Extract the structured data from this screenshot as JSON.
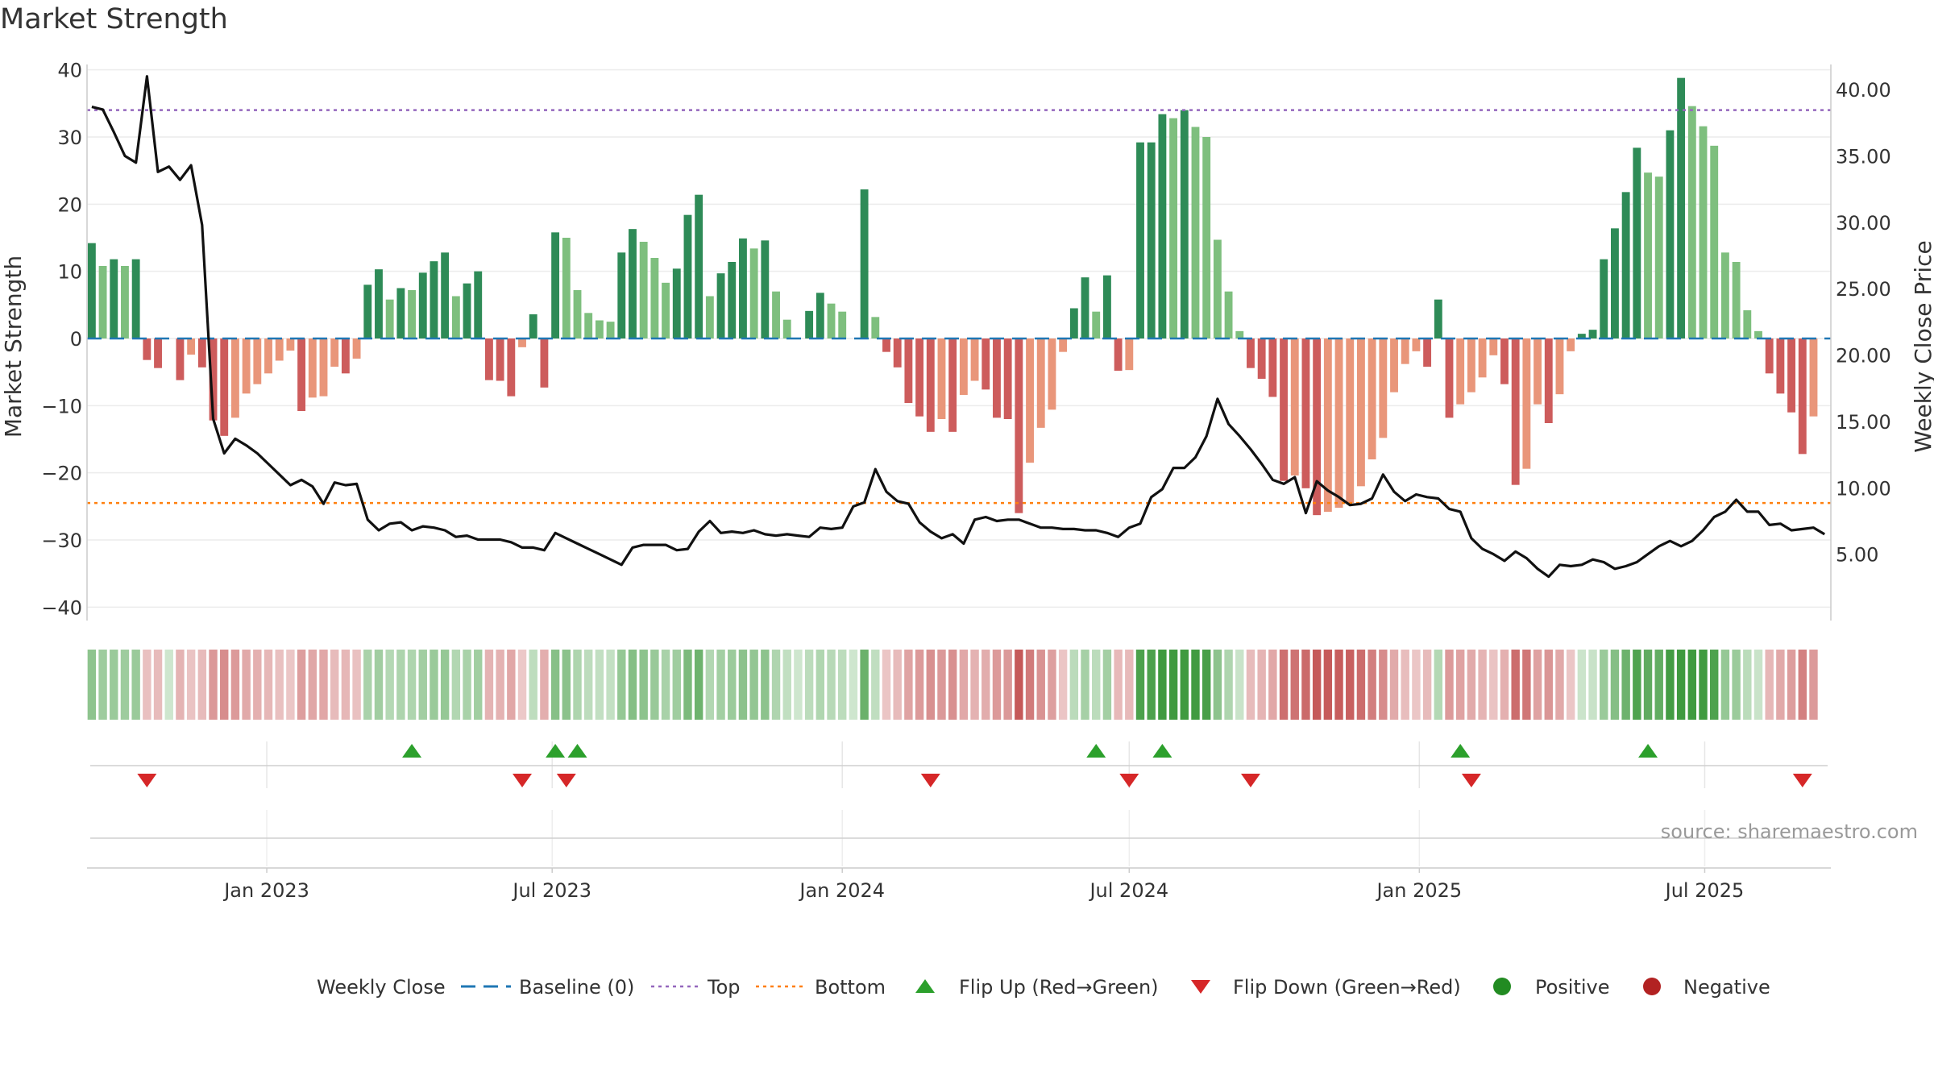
{
  "chart_data": {
    "type": "bar",
    "title": "Market Strength",
    "source": "source: sharemaestro.com",
    "y_left_label": "Market Strength",
    "y_right_label": "Weekly Close Price",
    "y_left_ticks": [
      "40",
      "30",
      "20",
      "10",
      "0",
      "−10",
      "−20",
      "−30",
      "−40"
    ],
    "y_left_tick_values": [
      40,
      30,
      20,
      10,
      0,
      -10,
      -20,
      -30,
      -40
    ],
    "y_right_ticks": [
      "40.00",
      "35.00",
      "30.00",
      "25.00",
      "20.00",
      "15.00",
      "10.00",
      "5.00"
    ],
    "y_right_tick_values": [
      40,
      35,
      30,
      25,
      20,
      15,
      10,
      5
    ],
    "ylim_left": [
      -42,
      42
    ],
    "ylim_right": [
      0,
      42.5
    ],
    "x_ticks": [
      "Jan 2023",
      "Jul 2023",
      "Jan 2024",
      "Jul 2024",
      "Jan 2025",
      "Jul 2025"
    ],
    "x_tick_dates": [
      "2023-01-01",
      "2023-07-01",
      "2024-01-01",
      "2024-07-01",
      "2025-01-01",
      "2025-07-01"
    ],
    "x_range": [
      "2022-09-09",
      "2025-09-19"
    ],
    "top_level": 34,
    "bottom_level": -24.5,
    "dates": [
      "2022-09-12",
      "2022-09-19",
      "2022-09-26",
      "2022-10-03",
      "2022-10-10",
      "2022-10-17",
      "2022-10-24",
      "2022-10-31",
      "2022-11-07",
      "2022-11-14",
      "2022-11-21",
      "2022-11-28",
      "2022-12-05",
      "2022-12-12",
      "2022-12-19",
      "2022-12-26",
      "2023-01-02",
      "2023-01-09",
      "2023-01-16",
      "2023-01-23",
      "2023-01-30",
      "2023-02-06",
      "2023-02-13",
      "2023-02-20",
      "2023-02-27",
      "2023-03-06",
      "2023-03-13",
      "2023-03-20",
      "2023-03-27",
      "2023-04-03",
      "2023-04-10",
      "2023-04-17",
      "2023-04-24",
      "2023-05-01",
      "2023-05-08",
      "2023-05-15",
      "2023-05-22",
      "2023-05-29",
      "2023-06-05",
      "2023-06-12",
      "2023-06-19",
      "2023-06-26",
      "2023-07-03",
      "2023-07-10",
      "2023-07-17",
      "2023-07-24",
      "2023-07-31",
      "2023-08-07",
      "2023-08-14",
      "2023-08-21",
      "2023-08-28",
      "2023-09-04",
      "2023-09-11",
      "2023-09-18",
      "2023-09-25",
      "2023-10-02",
      "2023-10-09",
      "2023-10-16",
      "2023-10-23",
      "2023-10-30",
      "2023-11-06",
      "2023-11-13",
      "2023-11-20",
      "2023-11-27",
      "2023-12-04",
      "2023-12-11",
      "2023-12-18",
      "2023-12-25",
      "2024-01-01",
      "2024-01-08",
      "2024-01-15",
      "2024-01-22",
      "2024-01-29",
      "2024-02-05",
      "2024-02-12",
      "2024-02-19",
      "2024-02-26",
      "2024-03-04",
      "2024-03-11",
      "2024-03-18",
      "2024-03-25",
      "2024-04-01",
      "2024-04-08",
      "2024-04-15",
      "2024-04-22",
      "2024-04-29",
      "2024-05-06",
      "2024-05-13",
      "2024-05-20",
      "2024-05-27",
      "2024-06-03",
      "2024-06-10",
      "2024-06-17",
      "2024-06-24",
      "2024-07-01",
      "2024-07-08",
      "2024-07-15",
      "2024-07-22",
      "2024-07-29",
      "2024-08-05",
      "2024-08-12",
      "2024-08-19",
      "2024-08-26",
      "2024-09-02",
      "2024-09-09",
      "2024-09-16",
      "2024-09-23",
      "2024-09-30",
      "2024-10-07",
      "2024-10-14",
      "2024-10-21",
      "2024-10-28",
      "2024-11-04",
      "2024-11-11",
      "2024-11-18",
      "2024-11-25",
      "2024-12-02",
      "2024-12-09",
      "2024-12-16",
      "2024-12-23",
      "2024-12-30",
      "2025-01-06",
      "2025-01-13",
      "2025-01-20",
      "2025-01-27",
      "2025-02-03",
      "2025-02-10",
      "2025-02-17",
      "2025-02-24",
      "2025-03-03",
      "2025-03-10",
      "2025-03-17",
      "2025-03-24",
      "2025-03-31",
      "2025-04-07",
      "2025-04-14",
      "2025-04-21",
      "2025-04-28",
      "2025-05-05",
      "2025-05-12",
      "2025-05-19",
      "2025-05-26",
      "2025-06-02",
      "2025-06-09",
      "2025-06-16",
      "2025-06-23",
      "2025-06-30",
      "2025-07-07",
      "2025-07-14",
      "2025-07-21",
      "2025-07-28",
      "2025-08-04",
      "2025-08-11",
      "2025-08-18",
      "2025-08-25",
      "2025-09-01",
      "2025-09-08",
      "2025-09-15"
    ],
    "strength": [
      14.2,
      10.8,
      11.8,
      10.8,
      11.8,
      -3.2,
      -4.4,
      0,
      -6.2,
      -2.4,
      -4.3,
      -12.2,
      -14.5,
      -11.8,
      -8.2,
      -6.8,
      -5.2,
      -3.3,
      -1.8,
      -10.8,
      -8.8,
      -8.6,
      -4.2,
      -5.2,
      -3.0,
      8.0,
      10.3,
      5.8,
      7.5,
      7.2,
      9.8,
      11.5,
      12.8,
      6.3,
      8.2,
      10.0,
      -6.2,
      -6.3,
      -8.6,
      -1.3,
      3.6,
      -7.3,
      15.8,
      15.0,
      7.2,
      3.8,
      2.7,
      2.5,
      12.8,
      16.3,
      14.4,
      12.0,
      8.3,
      10.4,
      18.4,
      21.4,
      6.3,
      9.7,
      11.4,
      14.9,
      13.4,
      14.6,
      7.0,
      2.8,
      0,
      4.1,
      6.8,
      5.2,
      4.0,
      0,
      22.2,
      3.2,
      -2.0,
      -4.3,
      -9.6,
      -11.6,
      -13.9,
      -12.0,
      -13.9,
      -8.4,
      -6.3,
      -7.6,
      -11.8,
      -12.0,
      -26.0,
      -18.5,
      -13.3,
      -10.6,
      -2.0,
      4.5,
      9.1,
      4.0,
      9.4,
      -4.8,
      -4.7,
      29.2,
      29.2,
      33.4,
      32.8,
      34.0,
      31.5,
      30.0,
      14.7,
      7.0,
      1.1,
      -4.4,
      -6.0,
      -8.7,
      -21.2,
      -20.4,
      -22.3,
      -26.3,
      -25.8,
      -25.2,
      -24.5,
      -22.0,
      -18.0,
      -14.8,
      -8.0,
      -3.8,
      -1.9,
      -4.2,
      5.8,
      -11.8,
      -9.8,
      -8.0,
      -5.8,
      -2.5,
      -6.8,
      -21.8,
      -19.4,
      -9.8,
      -12.6,
      -8.3,
      -1.9,
      0.7,
      1.3,
      11.8,
      16.4,
      21.8,
      28.4,
      24.7,
      24.1,
      31.0,
      38.8,
      34.6,
      31.6,
      28.7,
      12.8,
      11.4,
      4.2,
      1.1,
      -5.2,
      -8.2,
      -11.0,
      -17.2,
      -11.6
    ],
    "weekly_close": [
      38.7,
      38.5,
      36.8,
      35.0,
      34.5,
      41.0,
      33.8,
      34.2,
      33.2,
      34.3,
      29.8,
      15.2,
      12.6,
      13.7,
      13.2,
      12.6,
      11.8,
      11.0,
      10.2,
      10.6,
      10.1,
      8.8,
      10.4,
      10.2,
      10.3,
      7.6,
      6.8,
      7.3,
      7.4,
      6.8,
      7.1,
      7.0,
      6.8,
      6.3,
      6.4,
      6.1,
      6.1,
      6.1,
      5.9,
      5.5,
      5.5,
      5.3,
      6.6,
      6.2,
      5.8,
      5.4,
      5.0,
      4.6,
      4.2,
      5.5,
      5.7,
      5.7,
      5.7,
      5.3,
      5.4,
      6.7,
      7.5,
      6.6,
      6.7,
      6.6,
      6.8,
      6.5,
      6.4,
      6.5,
      6.4,
      6.3,
      7.0,
      6.9,
      7.0,
      8.6,
      8.9,
      11.4,
      9.7,
      9.0,
      8.8,
      7.4,
      6.7,
      6.2,
      6.5,
      5.8,
      7.6,
      7.8,
      7.5,
      7.6,
      7.6,
      7.3,
      7.0,
      7.0,
      6.9,
      6.9,
      6.8,
      6.8,
      6.6,
      6.3,
      7.0,
      7.3,
      9.3,
      9.9,
      11.5,
      11.5,
      12.3,
      13.9,
      16.7,
      14.8,
      13.9,
      12.9,
      11.8,
      10.6,
      10.3,
      10.8,
      8.1,
      10.5,
      9.8,
      9.3,
      8.7,
      8.8,
      9.2,
      11.0,
      9.7,
      9.0,
      9.5,
      9.3,
      9.2,
      8.4,
      8.2,
      6.2,
      5.4,
      5.0,
      4.5,
      5.2,
      4.7,
      3.9,
      3.3,
      4.2,
      4.1,
      4.2,
      4.6,
      4.4,
      3.9,
      4.1,
      4.4,
      5.0,
      5.6,
      6.0,
      5.6,
      6.0,
      6.8,
      7.8,
      8.2,
      9.1,
      8.2,
      8.2,
      7.2,
      7.3,
      6.8,
      6.9,
      7.0,
      6.5,
      7.1
    ],
    "flip_up_dates": [
      "2023-04-03",
      "2023-07-03",
      "2023-07-17",
      "2024-06-10",
      "2024-07-22",
      "2025-01-27",
      "2025-05-26"
    ],
    "flip_down_dates": [
      "2022-10-17",
      "2023-06-12",
      "2023-07-10",
      "2024-02-26",
      "2024-07-01",
      "2024-09-16",
      "2025-02-03",
      "2025-09-01"
    ],
    "colors": {
      "pos_dark": "#2e8b57",
      "pos_light": "#7ebf7e",
      "neg_dark": "#cd5c5c",
      "neg_light": "#e9967a",
      "line": "#111111",
      "baseline": "#1f77b4",
      "top": "#9467bd",
      "bottom": "#ff7f0e",
      "flip_up": "#2ca02c",
      "flip_down": "#d62728",
      "positive": "#228b22",
      "negative": "#b22222"
    },
    "legend": [
      {
        "key": "weekly_close",
        "label": "Weekly Close",
        "marker": "line"
      },
      {
        "key": "baseline",
        "label": "Baseline (0)",
        "marker": "dash"
      },
      {
        "key": "top",
        "label": "Top",
        "marker": "dot"
      },
      {
        "key": "bottom",
        "label": "Bottom",
        "marker": "dot"
      },
      {
        "key": "flip_up",
        "label": "Flip Up (Red→Green)",
        "marker": "tri-up"
      },
      {
        "key": "flip_down",
        "label": "Flip Down (Green→Red)",
        "marker": "tri-down"
      },
      {
        "key": "positive",
        "label": "Positive",
        "marker": "circle"
      },
      {
        "key": "negative",
        "label": "Negative",
        "marker": "circle"
      }
    ],
    "legend_position": "bottom-center",
    "grid": true
  }
}
